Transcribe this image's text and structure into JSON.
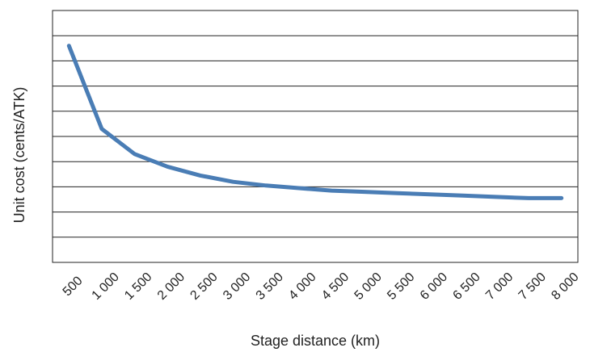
{
  "chart_data": {
    "type": "line",
    "title": "",
    "xlabel": "Stage distance (km)",
    "ylabel": "Unit cost (cents/ATK)",
    "x": [
      500,
      1000,
      1500,
      2000,
      2500,
      3000,
      3500,
      4000,
      4500,
      5000,
      5500,
      6000,
      6500,
      7000,
      7500,
      8000
    ],
    "x_tick_labels": [
      "500",
      "1 000",
      "1 500",
      "2 000",
      "2 500",
      "3 000",
      "3 500",
      "4 000",
      "4 500",
      "5 000",
      "5 500",
      "6 000",
      "6 500",
      "7 000",
      "7 500",
      "8 000"
    ],
    "series": [
      {
        "values": [
          7.6,
          4.3,
          3.3,
          2.8,
          2.45,
          2.2,
          2.05,
          1.95,
          1.85,
          1.8,
          1.75,
          1.7,
          1.65,
          1.6,
          1.55,
          1.55
        ]
      }
    ],
    "xlim": [
      250,
      8250
    ],
    "ylim": [
      -1,
      9
    ],
    "y_gridlines": [
      0,
      1,
      2,
      3,
      4,
      5,
      6,
      7,
      8,
      9
    ],
    "grid": true,
    "line_color": "#4a7db5",
    "grid_color": "#222222"
  }
}
